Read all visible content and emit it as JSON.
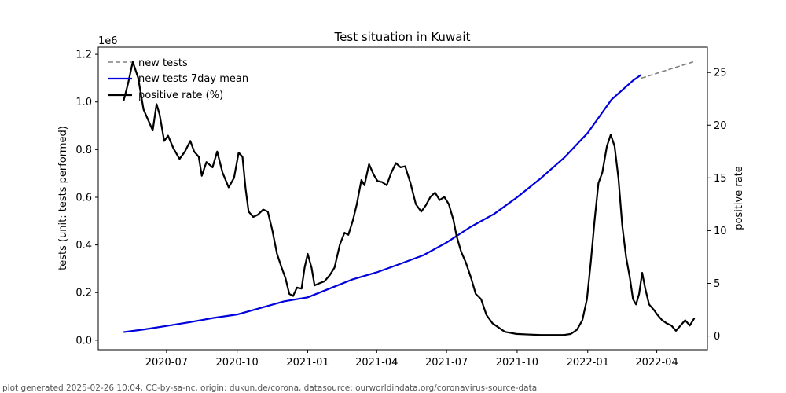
{
  "chart_data": {
    "type": "line",
    "title": "Test situation in Kuwait",
    "ylabel": "tests (unit: tests performed)",
    "y2label": "positive rate",
    "y_offset_label": "1e6",
    "x_ticks": [
      "2020-07",
      "2020-10",
      "2021-01",
      "2021-04",
      "2021-07",
      "2021-10",
      "2022-01",
      "2022-04"
    ],
    "y_ticks": [
      "0.0",
      "0.2",
      "0.4",
      "0.6",
      "0.8",
      "1.0",
      "1.2"
    ],
    "y2_ticks": [
      "0",
      "5",
      "10",
      "15",
      "20",
      "25"
    ],
    "ylim": [
      -0.04,
      1.23
    ],
    "y2lim": [
      -1.3,
      27.4
    ],
    "xlim": [
      "2020-04-03",
      "2022-06-06"
    ],
    "legend_position": "top-left",
    "legend": [
      "new tests",
      "new tests 7day mean",
      "positive rate (%)"
    ],
    "series": [
      {
        "name": "new tests",
        "axis": "left",
        "color": "#808080",
        "style": "dashed",
        "points": [
          [
            "2022-03-12",
            1.1
          ],
          [
            "2022-05-20",
            1.17
          ]
        ]
      },
      {
        "name": "new tests 7day mean",
        "axis": "left",
        "color": "#0000dd",
        "style": "solid",
        "points": [
          [
            "2020-05-06",
            0.034
          ],
          [
            "2020-06-01",
            0.045
          ],
          [
            "2020-07-01",
            0.06
          ],
          [
            "2020-08-01",
            0.076
          ],
          [
            "2020-09-01",
            0.094
          ],
          [
            "2020-10-01",
            0.108
          ],
          [
            "2020-11-01",
            0.136
          ],
          [
            "2020-12-01",
            0.163
          ],
          [
            "2021-01-01",
            0.18
          ],
          [
            "2021-02-01",
            0.22
          ],
          [
            "2021-03-01",
            0.256
          ],
          [
            "2021-04-01",
            0.285
          ],
          [
            "2021-05-01",
            0.32
          ],
          [
            "2021-06-01",
            0.357
          ],
          [
            "2021-07-01",
            0.41
          ],
          [
            "2021-08-01",
            0.475
          ],
          [
            "2021-09-01",
            0.53
          ],
          [
            "2021-10-01",
            0.6
          ],
          [
            "2021-11-01",
            0.68
          ],
          [
            "2021-12-01",
            0.765
          ],
          [
            "2022-01-01",
            0.87
          ],
          [
            "2022-02-01",
            1.01
          ],
          [
            "2022-03-01",
            1.09
          ],
          [
            "2022-03-12",
            1.115
          ]
        ]
      },
      {
        "name": "positive rate (%)",
        "axis": "right",
        "color": "#000000",
        "style": "solid",
        "points": [
          [
            "2020-05-06",
            22.3
          ],
          [
            "2020-05-12",
            24.0
          ],
          [
            "2020-05-18",
            26.0
          ],
          [
            "2020-05-25",
            24.5
          ],
          [
            "2020-06-01",
            21.5
          ],
          [
            "2020-06-07",
            20.5
          ],
          [
            "2020-06-13",
            19.5
          ],
          [
            "2020-06-18",
            22.0
          ],
          [
            "2020-06-22",
            21.0
          ],
          [
            "2020-06-28",
            18.5
          ],
          [
            "2020-07-03",
            19.0
          ],
          [
            "2020-07-10",
            17.8
          ],
          [
            "2020-07-18",
            16.8
          ],
          [
            "2020-07-25",
            17.5
          ],
          [
            "2020-08-01",
            18.5
          ],
          [
            "2020-08-06",
            17.5
          ],
          [
            "2020-08-12",
            17.0
          ],
          [
            "2020-08-16",
            15.2
          ],
          [
            "2020-08-22",
            16.5
          ],
          [
            "2020-08-30",
            16.0
          ],
          [
            "2020-09-05",
            17.5
          ],
          [
            "2020-09-12",
            15.5
          ],
          [
            "2020-09-20",
            14.1
          ],
          [
            "2020-09-27",
            15.0
          ],
          [
            "2020-10-03",
            17.4
          ],
          [
            "2020-10-08",
            17.0
          ],
          [
            "2020-10-12",
            14.0
          ],
          [
            "2020-10-16",
            11.8
          ],
          [
            "2020-10-22",
            11.3
          ],
          [
            "2020-10-28",
            11.5
          ],
          [
            "2020-11-04",
            12.0
          ],
          [
            "2020-11-10",
            11.8
          ],
          [
            "2020-11-16",
            10.0
          ],
          [
            "2020-11-22",
            7.8
          ],
          [
            "2020-11-28",
            6.5
          ],
          [
            "2020-12-03",
            5.5
          ],
          [
            "2020-12-08",
            4.0
          ],
          [
            "2020-12-13",
            3.8
          ],
          [
            "2020-12-18",
            4.6
          ],
          [
            "2020-12-24",
            4.5
          ],
          [
            "2020-12-28",
            6.5
          ],
          [
            "2021-01-01",
            7.8
          ],
          [
            "2021-01-06",
            6.5
          ],
          [
            "2021-01-10",
            4.8
          ],
          [
            "2021-01-16",
            5.0
          ],
          [
            "2021-01-23",
            5.2
          ],
          [
            "2021-01-30",
            5.8
          ],
          [
            "2021-02-05",
            6.5
          ],
          [
            "2021-02-12",
            8.7
          ],
          [
            "2021-02-18",
            9.8
          ],
          [
            "2021-02-23",
            9.6
          ],
          [
            "2021-03-01",
            11.0
          ],
          [
            "2021-03-06",
            12.5
          ],
          [
            "2021-03-12",
            14.8
          ],
          [
            "2021-03-16",
            14.3
          ],
          [
            "2021-03-22",
            16.3
          ],
          [
            "2021-03-28",
            15.3
          ],
          [
            "2021-04-02",
            14.7
          ],
          [
            "2021-04-08",
            14.6
          ],
          [
            "2021-04-14",
            14.3
          ],
          [
            "2021-04-20",
            15.5
          ],
          [
            "2021-04-26",
            16.4
          ],
          [
            "2021-05-02",
            16.0
          ],
          [
            "2021-05-08",
            16.1
          ],
          [
            "2021-05-15",
            14.5
          ],
          [
            "2021-05-22",
            12.5
          ],
          [
            "2021-05-29",
            11.8
          ],
          [
            "2021-06-04",
            12.4
          ],
          [
            "2021-06-10",
            13.2
          ],
          [
            "2021-06-16",
            13.6
          ],
          [
            "2021-06-22",
            12.9
          ],
          [
            "2021-06-28",
            13.2
          ],
          [
            "2021-07-04",
            12.5
          ],
          [
            "2021-07-10",
            11.0
          ],
          [
            "2021-07-14",
            9.5
          ],
          [
            "2021-07-20",
            8.0
          ],
          [
            "2021-07-26",
            7.0
          ],
          [
            "2021-08-02",
            5.5
          ],
          [
            "2021-08-08",
            4.0
          ],
          [
            "2021-08-15",
            3.5
          ],
          [
            "2021-08-22",
            2.0
          ],
          [
            "2021-08-30",
            1.2
          ],
          [
            "2021-09-07",
            0.8
          ],
          [
            "2021-09-15",
            0.4
          ],
          [
            "2021-09-30",
            0.2
          ],
          [
            "2021-10-15",
            0.15
          ],
          [
            "2021-11-01",
            0.1
          ],
          [
            "2021-11-15",
            0.1
          ],
          [
            "2021-12-01",
            0.1
          ],
          [
            "2021-12-10",
            0.2
          ],
          [
            "2021-12-18",
            0.6
          ],
          [
            "2021-12-25",
            1.5
          ],
          [
            "2021-12-31",
            3.5
          ],
          [
            "2022-01-05",
            7.0
          ],
          [
            "2022-01-10",
            11.0
          ],
          [
            "2022-01-15",
            14.5
          ],
          [
            "2022-01-20",
            15.5
          ],
          [
            "2022-01-26",
            18.0
          ],
          [
            "2022-01-31",
            19.1
          ],
          [
            "2022-02-05",
            18.0
          ],
          [
            "2022-02-10",
            15.0
          ],
          [
            "2022-02-15",
            10.5
          ],
          [
            "2022-02-20",
            7.5
          ],
          [
            "2022-02-25",
            5.5
          ],
          [
            "2022-03-01",
            3.5
          ],
          [
            "2022-03-05",
            3.0
          ],
          [
            "2022-03-09",
            4.0
          ],
          [
            "2022-03-13",
            6.0
          ],
          [
            "2022-03-17",
            4.5
          ],
          [
            "2022-03-22",
            3.0
          ],
          [
            "2022-03-28",
            2.5
          ],
          [
            "2022-04-02",
            2.0
          ],
          [
            "2022-04-08",
            1.5
          ],
          [
            "2022-04-14",
            1.2
          ],
          [
            "2022-04-20",
            1.0
          ],
          [
            "2022-04-26",
            0.5
          ],
          [
            "2022-05-02",
            1.0
          ],
          [
            "2022-05-08",
            1.5
          ],
          [
            "2022-05-14",
            1.0
          ],
          [
            "2022-05-20",
            1.7
          ]
        ]
      }
    ]
  },
  "footer": "plot generated 2025-02-26 10:04, CC-by-sa-nc, origin: dukun.de/corona, datasource: ourworldindata.org/coronavirus-source-data"
}
